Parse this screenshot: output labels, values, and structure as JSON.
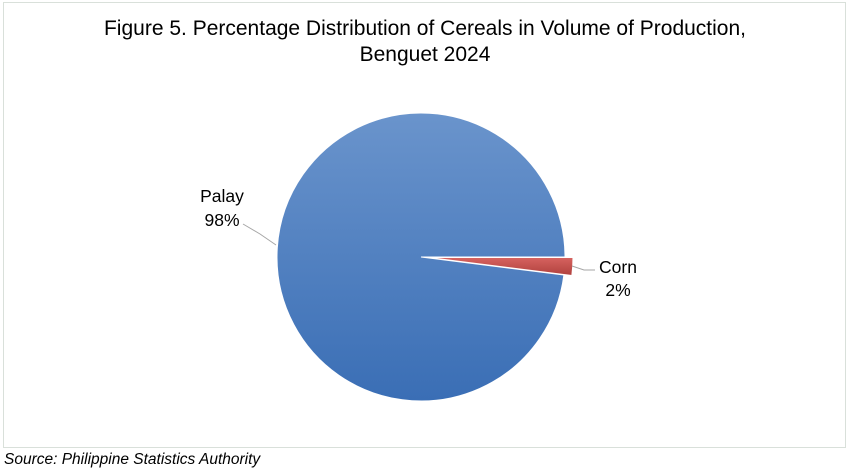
{
  "chart_data": {
    "type": "pie",
    "title": "Figure 5. Percentage Distribution of Cereals in Volume of Production,",
    "title_line2": "Benguet 2024",
    "categories": [
      "Palay",
      "Corn"
    ],
    "values": [
      98,
      2
    ],
    "data_labels": [
      "98%",
      "2%"
    ],
    "colors": [
      "#4a7ec2",
      "#c0504d"
    ],
    "exploded": "Corn",
    "legend": "none"
  },
  "source": "Source: Philippine Statistics Authority"
}
